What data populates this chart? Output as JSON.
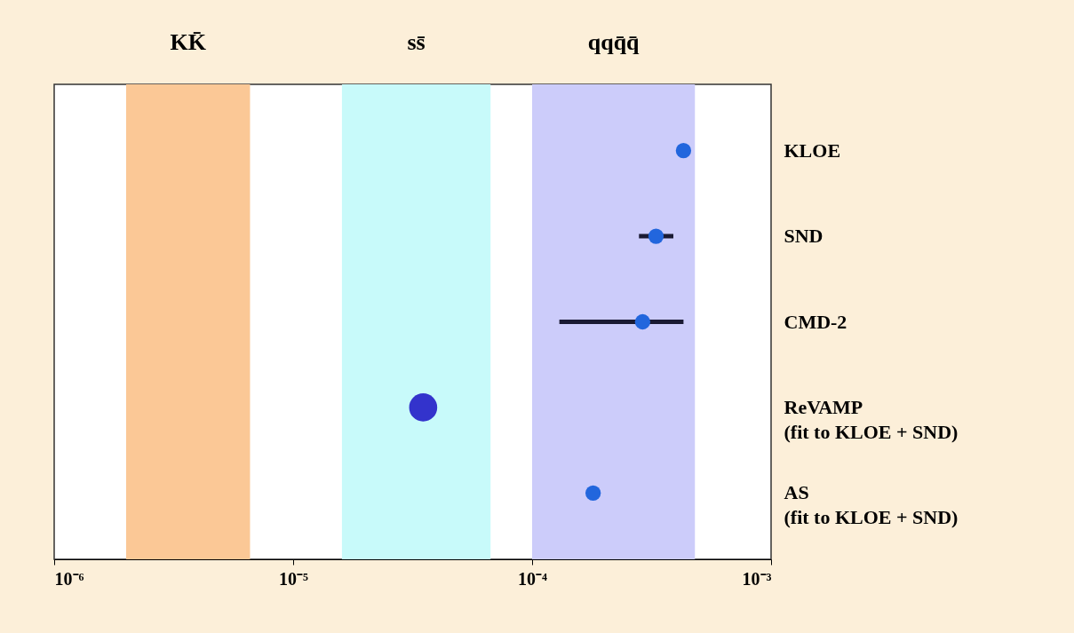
{
  "chart_data": {
    "type": "scatter",
    "orientation": "horizontal",
    "marker": "circle",
    "categories": [
      "KLOE",
      "SND",
      "CMD-2",
      "ReVAMP\n(fit to KLOE + SND)",
      "AS\n(fit to KLOE + SND)"
    ],
    "series": [
      {
        "color": "#2266dd",
        "values": [
          0.00043,
          0.00033,
          0.00029,
          null,
          0.00018
        ],
        "errors": [
          null,
          [
            0.00028,
            0.00039
          ],
          [
            0.00013,
            0.00043
          ],
          null,
          null
        ]
      },
      {
        "color": "#3333cc",
        "values": [
          null,
          null,
          null,
          3.5e-05,
          null
        ]
      }
    ],
    "xlim": [
      1e-06,
      0.001
    ],
    "log": "x",
    "xticks": [
      {
        "value": 1e-06,
        "label": "10⁻⁶"
      },
      {
        "value": 1e-05,
        "label": "10⁻⁵"
      },
      {
        "value": 0.0001,
        "label": "10⁻⁴"
      },
      {
        "value": 0.001,
        "label": "10⁻³"
      }
    ],
    "bands": [
      {
        "axis": "x",
        "from": 2e-06,
        "to": 6.6e-06,
        "label": "KK̄",
        "color": "#fbc896"
      },
      {
        "axis": "x",
        "from": 1.6e-05,
        "to": 6.7e-05,
        "label": "ss̄",
        "color": "#c8fafa"
      },
      {
        "axis": "x",
        "from": 0.0001,
        "to": 0.00048,
        "label": "qqq̄q̄",
        "color": "#ccccfa"
      }
    ]
  }
}
